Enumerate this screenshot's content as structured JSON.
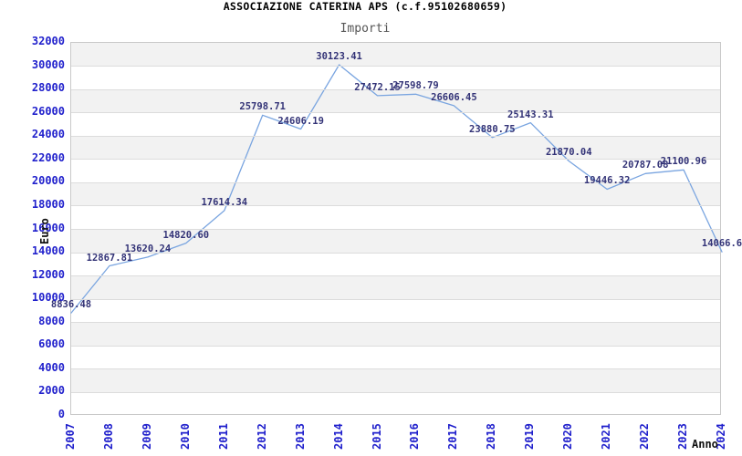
{
  "title": "ASSOCIAZIONE CATERINA APS (c.f.95102680659)",
  "subtitle": "Importi",
  "axes": {
    "y_title": "Euro",
    "x_title": "Anno"
  },
  "colors": {
    "tick_label": "#2020cc",
    "point_label": "#333377",
    "line": "#7aa5e0",
    "band": "#f2f2f2",
    "band_alt": "#ffffff",
    "gridline": "#dcdcdc",
    "plot_border": "#c9c9c9",
    "title": "#000000",
    "subtitle": "#555555",
    "axis_title": "#111111"
  },
  "chart_data": {
    "type": "line",
    "title": "ASSOCIAZIONE CATERINA APS (c.f.95102680659)",
    "subtitle": "Importi",
    "xlabel": "Anno",
    "ylabel": "Euro",
    "x": [
      "2007",
      "2008",
      "2009",
      "2010",
      "2011",
      "2012",
      "2013",
      "2014",
      "2015",
      "2016",
      "2017",
      "2018",
      "2019",
      "2020",
      "2021",
      "2022",
      "2023",
      "2024"
    ],
    "values": [
      8836.48,
      12867.81,
      13620.24,
      14820.6,
      17614.34,
      25798.71,
      24606.19,
      30123.41,
      27472.15,
      27598.79,
      26606.45,
      23880.75,
      25143.31,
      21870.04,
      19446.32,
      20787.08,
      21100.96,
      14066.6
    ],
    "point_labels": [
      "8836.48",
      "12867.81",
      "13620.24",
      "14820.60",
      "17614.34",
      "25798.71",
      "24606.19",
      "30123.41",
      "27472.15",
      "27598.79",
      "26606.45",
      "23880.75",
      "25143.31",
      "21870.04",
      "19446.32",
      "20787.08",
      "21100.96",
      "14066.6"
    ],
    "ylim": [
      0,
      32000
    ],
    "ytick_step": 2000,
    "grid": true,
    "banded_background": true,
    "legend_position": "none",
    "marker": "none"
  }
}
